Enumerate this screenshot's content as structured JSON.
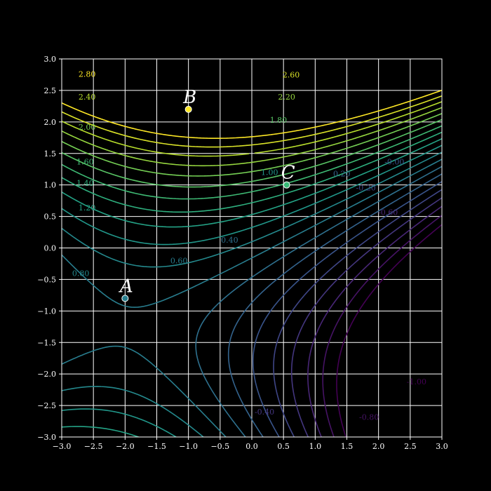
{
  "chart_data": {
    "type": "contour",
    "title": "",
    "xlabel": "",
    "ylabel": "",
    "xlim": [
      -3,
      3
    ],
    "ylim": [
      -3,
      3
    ],
    "xticks": [
      -3.0,
      -2.5,
      -2.0,
      -1.5,
      -1.0,
      -0.5,
      0.0,
      0.5,
      1.0,
      1.5,
      2.0,
      2.5,
      3.0
    ],
    "xtick_labels": [
      "−3.0",
      "−2.5",
      "−2.0",
      "−1.5",
      "−1.0",
      "−0.5",
      "0.0",
      "0.5",
      "1.0",
      "1.5",
      "2.0",
      "2.5",
      "3.0"
    ],
    "yticks": [
      -3.0,
      -2.5,
      -2.0,
      -1.5,
      -1.0,
      -0.5,
      0.0,
      0.5,
      1.0,
      1.5,
      2.0,
      2.5,
      3.0
    ],
    "ytick_labels": [
      "−3.0",
      "−2.5",
      "−2.0",
      "−1.5",
      "−1.0",
      "−0.5",
      "0.0",
      "0.5",
      "1.0",
      "1.5",
      "2.0",
      "2.5",
      "3.0"
    ],
    "grid": true,
    "background": "#000000",
    "axes_color": "#ffffff",
    "colormap": "viridis",
    "levels": [
      -1.0,
      -0.8,
      -0.6,
      -0.4,
      -0.2,
      0.0,
      0.2,
      0.4,
      0.6,
      0.8,
      1.0,
      1.2,
      1.4,
      1.6,
      1.8,
      2.0,
      2.2,
      2.4,
      2.6,
      2.8
    ],
    "contour_labels": [
      {
        "text": "2.80",
        "x": -2.6,
        "y": 2.76
      },
      {
        "text": "2.60",
        "x": 0.62,
        "y": 2.75
      },
      {
        "text": "2.40",
        "x": -2.6,
        "y": 2.4
      },
      {
        "text": "2.20",
        "x": 0.55,
        "y": 2.4
      },
      {
        "text": "2.00",
        "x": -2.6,
        "y": 1.92
      },
      {
        "text": "1.80",
        "x": 0.42,
        "y": 2.03
      },
      {
        "text": "1.60",
        "x": -2.63,
        "y": 1.37
      },
      {
        "text": "1.40",
        "x": -2.63,
        "y": 1.03
      },
      {
        "text": "1.20",
        "x": -2.6,
        "y": 0.64
      },
      {
        "text": "1.00",
        "x": 0.28,
        "y": 1.2
      },
      {
        "text": "0.80",
        "x": -2.7,
        "y": -0.4
      },
      {
        "text": "0.60",
        "x": -1.15,
        "y": -0.2
      },
      {
        "text": "0.40",
        "x": -0.35,
        "y": 0.13
      },
      {
        "text": "0.20",
        "x": 1.42,
        "y": 1.18
      },
      {
        "text": "-0.00",
        "x": 2.25,
        "y": 1.37
      },
      {
        "text": "-0.20",
        "x": 1.8,
        "y": 0.96
      },
      {
        "text": "-0.60",
        "x": 2.15,
        "y": 0.57
      },
      {
        "text": "-0.40",
        "x": 0.2,
        "y": -2.6
      },
      {
        "text": "-0.80",
        "x": 1.85,
        "y": -2.68
      },
      {
        "text": "-1.00",
        "x": 2.6,
        "y": -2.12
      }
    ],
    "points": [
      {
        "label": "A",
        "x": -2.0,
        "y": -0.8
      },
      {
        "label": "B",
        "x": -1.0,
        "y": 2.2
      },
      {
        "label": "C",
        "x": 0.55,
        "y": 1.0
      }
    ]
  }
}
